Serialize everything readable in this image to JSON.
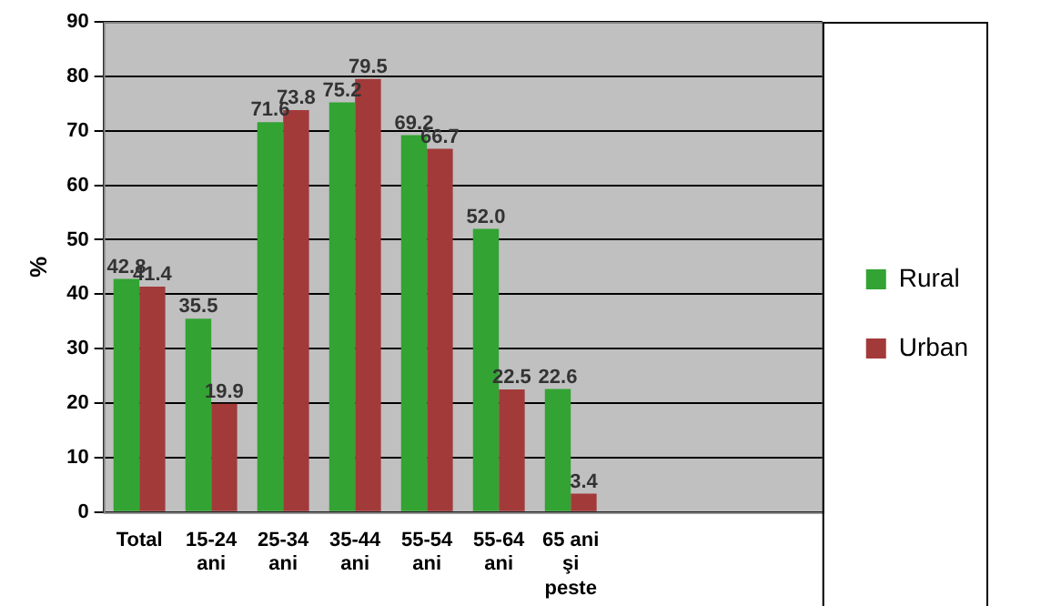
{
  "chart_data": {
    "type": "bar",
    "ylabel": "%",
    "categories": [
      "Total",
      "15-24\nani",
      "25-34\nani",
      "35-44\nani",
      "55-54\nani",
      "55-64\nani",
      "65 ani\nşi\npeste",
      null,
      null,
      null
    ],
    "series": [
      {
        "name": "Rural",
        "color": "#33a333",
        "values": [
          42.8,
          35.5,
          71.6,
          75.2,
          69.2,
          52.0,
          22.6,
          null,
          null,
          null
        ],
        "value_labels": [
          "42.8",
          "35.5",
          "71.6",
          "75.2",
          "69.2",
          "52.0",
          "22.6",
          null,
          null,
          null
        ]
      },
      {
        "name": "Urban",
        "color": "#a33a3a",
        "values": [
          41.4,
          19.9,
          73.8,
          79.5,
          66.7,
          22.5,
          3.4,
          null,
          null,
          null
        ],
        "value_labels": [
          "41.4",
          "19.9",
          "73.8",
          "79.5",
          "66.7",
          "22.5",
          "3.4",
          null,
          null,
          null
        ]
      }
    ],
    "ylim": [
      0,
      90
    ],
    "yticks": [
      0,
      10,
      20,
      30,
      40,
      50,
      60,
      70,
      80,
      90
    ],
    "grid": "y",
    "legend": "right"
  }
}
